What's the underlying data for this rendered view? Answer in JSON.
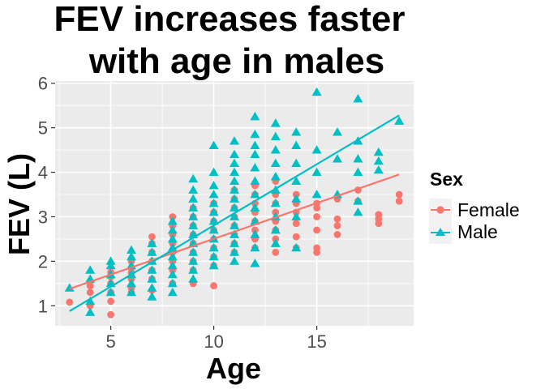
{
  "chart_data": {
    "type": "scatter",
    "title": [
      "FEV increases faster",
      "with age in males"
    ],
    "xlabel": "Age",
    "ylabel": "FEV (L)",
    "xlim": [
      2.3,
      19.7
    ],
    "ylim": [
      0.55,
      6.05
    ],
    "x_ticks": [
      5,
      10,
      15
    ],
    "y_ticks": [
      1,
      2,
      3,
      4,
      5,
      6
    ],
    "grid": true,
    "legend": {
      "title": "Sex",
      "position": "right"
    },
    "colors": {
      "Female": "#F8766D",
      "Male": "#00BFC4",
      "panel": "#EBEBEB",
      "grid": "#FFFFFF"
    },
    "series": [
      {
        "name": "Female",
        "marker": "circle",
        "trend": {
          "x": [
            3,
            19
          ],
          "y": [
            1.38,
            3.95
          ]
        },
        "points": [
          [
            3,
            1.08
          ],
          [
            4,
            1.45
          ],
          [
            4,
            1.55
          ],
          [
            4,
            1.3
          ],
          [
            4,
            1.0
          ],
          [
            5,
            0.8
          ],
          [
            5,
            1.3
          ],
          [
            5,
            1.5
          ],
          [
            5,
            1.65
          ],
          [
            5,
            1.75
          ],
          [
            5,
            1.1
          ],
          [
            6,
            1.4
          ],
          [
            6,
            1.6
          ],
          [
            6,
            1.75
          ],
          [
            6,
            1.85
          ],
          [
            6,
            2.0
          ],
          [
            6,
            1.3
          ],
          [
            7,
            1.35
          ],
          [
            7,
            1.6
          ],
          [
            7,
            1.8
          ],
          [
            7,
            2.0
          ],
          [
            7,
            2.2
          ],
          [
            7,
            2.4
          ],
          [
            7,
            2.55
          ],
          [
            8,
            1.5
          ],
          [
            8,
            1.8
          ],
          [
            8,
            2.0
          ],
          [
            8,
            2.2
          ],
          [
            8,
            2.4
          ],
          [
            8,
            2.6
          ],
          [
            8,
            2.8
          ],
          [
            8,
            3.0
          ],
          [
            9,
            1.5
          ],
          [
            9,
            1.8
          ],
          [
            9,
            2.0
          ],
          [
            9,
            2.2
          ],
          [
            9,
            2.4
          ],
          [
            9,
            2.6
          ],
          [
            9,
            2.8
          ],
          [
            9,
            3.0
          ],
          [
            9,
            3.2
          ],
          [
            10,
            1.45
          ],
          [
            10,
            1.9
          ],
          [
            10,
            2.1
          ],
          [
            10,
            2.3
          ],
          [
            10,
            2.5
          ],
          [
            10,
            2.7
          ],
          [
            10,
            2.9
          ],
          [
            10,
            3.1
          ],
          [
            10,
            3.3
          ],
          [
            11,
            2.2
          ],
          [
            11,
            2.4
          ],
          [
            11,
            2.6
          ],
          [
            11,
            2.8
          ],
          [
            11,
            3.0
          ],
          [
            11,
            3.2
          ],
          [
            11,
            3.4
          ],
          [
            11,
            3.6
          ],
          [
            12,
            2.3
          ],
          [
            12,
            2.5
          ],
          [
            12,
            2.7
          ],
          [
            12,
            2.9
          ],
          [
            12,
            3.1
          ],
          [
            12,
            3.3
          ],
          [
            12,
            3.5
          ],
          [
            12,
            3.7
          ],
          [
            13,
            2.2
          ],
          [
            13,
            2.5
          ],
          [
            13,
            2.7
          ],
          [
            13,
            2.9
          ],
          [
            13,
            3.1
          ],
          [
            13,
            3.3
          ],
          [
            13,
            3.5
          ],
          [
            13,
            3.8
          ],
          [
            14,
            2.3
          ],
          [
            14,
            2.55
          ],
          [
            14,
            2.85
          ],
          [
            14,
            3.1
          ],
          [
            14,
            3.3
          ],
          [
            14,
            3.5
          ],
          [
            15,
            2.2
          ],
          [
            15,
            2.3
          ],
          [
            15,
            2.7
          ],
          [
            15,
            3.0
          ],
          [
            15,
            3.2
          ],
          [
            15,
            3.3
          ],
          [
            16,
            2.6
          ],
          [
            16,
            2.8
          ],
          [
            16,
            2.95
          ],
          [
            16,
            3.4
          ],
          [
            17,
            3.35
          ],
          [
            17,
            3.6
          ],
          [
            18,
            2.85
          ],
          [
            18,
            2.95
          ],
          [
            18,
            3.05
          ],
          [
            19,
            3.35
          ],
          [
            19,
            3.5
          ]
        ]
      },
      {
        "name": "Male",
        "marker": "triangle",
        "trend": {
          "x": [
            3,
            19
          ],
          "y": [
            0.88,
            5.28
          ]
        },
        "points": [
          [
            3,
            1.4
          ],
          [
            4,
            0.85
          ],
          [
            4,
            1.1
          ],
          [
            4,
            1.6
          ],
          [
            4,
            1.8
          ],
          [
            5,
            1.3
          ],
          [
            5,
            1.5
          ],
          [
            5,
            1.7
          ],
          [
            5,
            1.9
          ],
          [
            5,
            2.0
          ],
          [
            6,
            1.3
          ],
          [
            6,
            1.5
          ],
          [
            6,
            1.7
          ],
          [
            6,
            1.9
          ],
          [
            6,
            2.1
          ],
          [
            6,
            2.25
          ],
          [
            7,
            1.2
          ],
          [
            7,
            1.4
          ],
          [
            7,
            1.6
          ],
          [
            7,
            1.8
          ],
          [
            7,
            2.0
          ],
          [
            7,
            2.2
          ],
          [
            7,
            2.4
          ],
          [
            8,
            1.3
          ],
          [
            8,
            1.5
          ],
          [
            8,
            1.7
          ],
          [
            8,
            1.9
          ],
          [
            8,
            2.1
          ],
          [
            8,
            2.3
          ],
          [
            8,
            2.5
          ],
          [
            8,
            2.7
          ],
          [
            8,
            2.9
          ],
          [
            9,
            1.6
          ],
          [
            9,
            1.8
          ],
          [
            9,
            2.0
          ],
          [
            9,
            2.2
          ],
          [
            9,
            2.4
          ],
          [
            9,
            2.6
          ],
          [
            9,
            2.8
          ],
          [
            9,
            3.0
          ],
          [
            9,
            3.2
          ],
          [
            9,
            3.4
          ],
          [
            9,
            3.6
          ],
          [
            9,
            3.85
          ],
          [
            10,
            1.9
          ],
          [
            10,
            2.1
          ],
          [
            10,
            2.3
          ],
          [
            10,
            2.5
          ],
          [
            10,
            2.7
          ],
          [
            10,
            2.9
          ],
          [
            10,
            3.1
          ],
          [
            10,
            3.3
          ],
          [
            10,
            3.5
          ],
          [
            10,
            3.7
          ],
          [
            10,
            4.0
          ],
          [
            10,
            4.6
          ],
          [
            11,
            2.0
          ],
          [
            11,
            2.2
          ],
          [
            11,
            2.4
          ],
          [
            11,
            2.6
          ],
          [
            11,
            2.8
          ],
          [
            11,
            3.0
          ],
          [
            11,
            3.2
          ],
          [
            11,
            3.4
          ],
          [
            11,
            3.6
          ],
          [
            11,
            3.8
          ],
          [
            11,
            4.0
          ],
          [
            11,
            4.2
          ],
          [
            11,
            4.4
          ],
          [
            11,
            4.7
          ],
          [
            12,
            1.95
          ],
          [
            12,
            2.3
          ],
          [
            12,
            2.6
          ],
          [
            12,
            2.9
          ],
          [
            12,
            3.2
          ],
          [
            12,
            3.5
          ],
          [
            12,
            3.8
          ],
          [
            12,
            4.1
          ],
          [
            12,
            4.4
          ],
          [
            12,
            4.6
          ],
          [
            12,
            4.85
          ],
          [
            12,
            5.25
          ],
          [
            13,
            2.4
          ],
          [
            13,
            2.7
          ],
          [
            13,
            3.0
          ],
          [
            13,
            3.3
          ],
          [
            13,
            3.6
          ],
          [
            13,
            3.9
          ],
          [
            13,
            4.2
          ],
          [
            13,
            4.5
          ],
          [
            13,
            4.8
          ],
          [
            13,
            5.1
          ],
          [
            14,
            2.3
          ],
          [
            14,
            3.0
          ],
          [
            14,
            3.4
          ],
          [
            14,
            3.8
          ],
          [
            14,
            4.2
          ],
          [
            14,
            4.6
          ],
          [
            14,
            4.9
          ],
          [
            15,
            3.5
          ],
          [
            15,
            4.0
          ],
          [
            15,
            4.5
          ],
          [
            15,
            5.8
          ],
          [
            16,
            3.5
          ],
          [
            16,
            4.3
          ],
          [
            16,
            4.9
          ],
          [
            17,
            3.1
          ],
          [
            17,
            3.35
          ],
          [
            17,
            4.0
          ],
          [
            17,
            4.3
          ],
          [
            17,
            4.7
          ],
          [
            17,
            5.65
          ],
          [
            18,
            4.05
          ],
          [
            18,
            4.25
          ],
          [
            18,
            4.45
          ],
          [
            19,
            5.15
          ]
        ]
      }
    ]
  }
}
